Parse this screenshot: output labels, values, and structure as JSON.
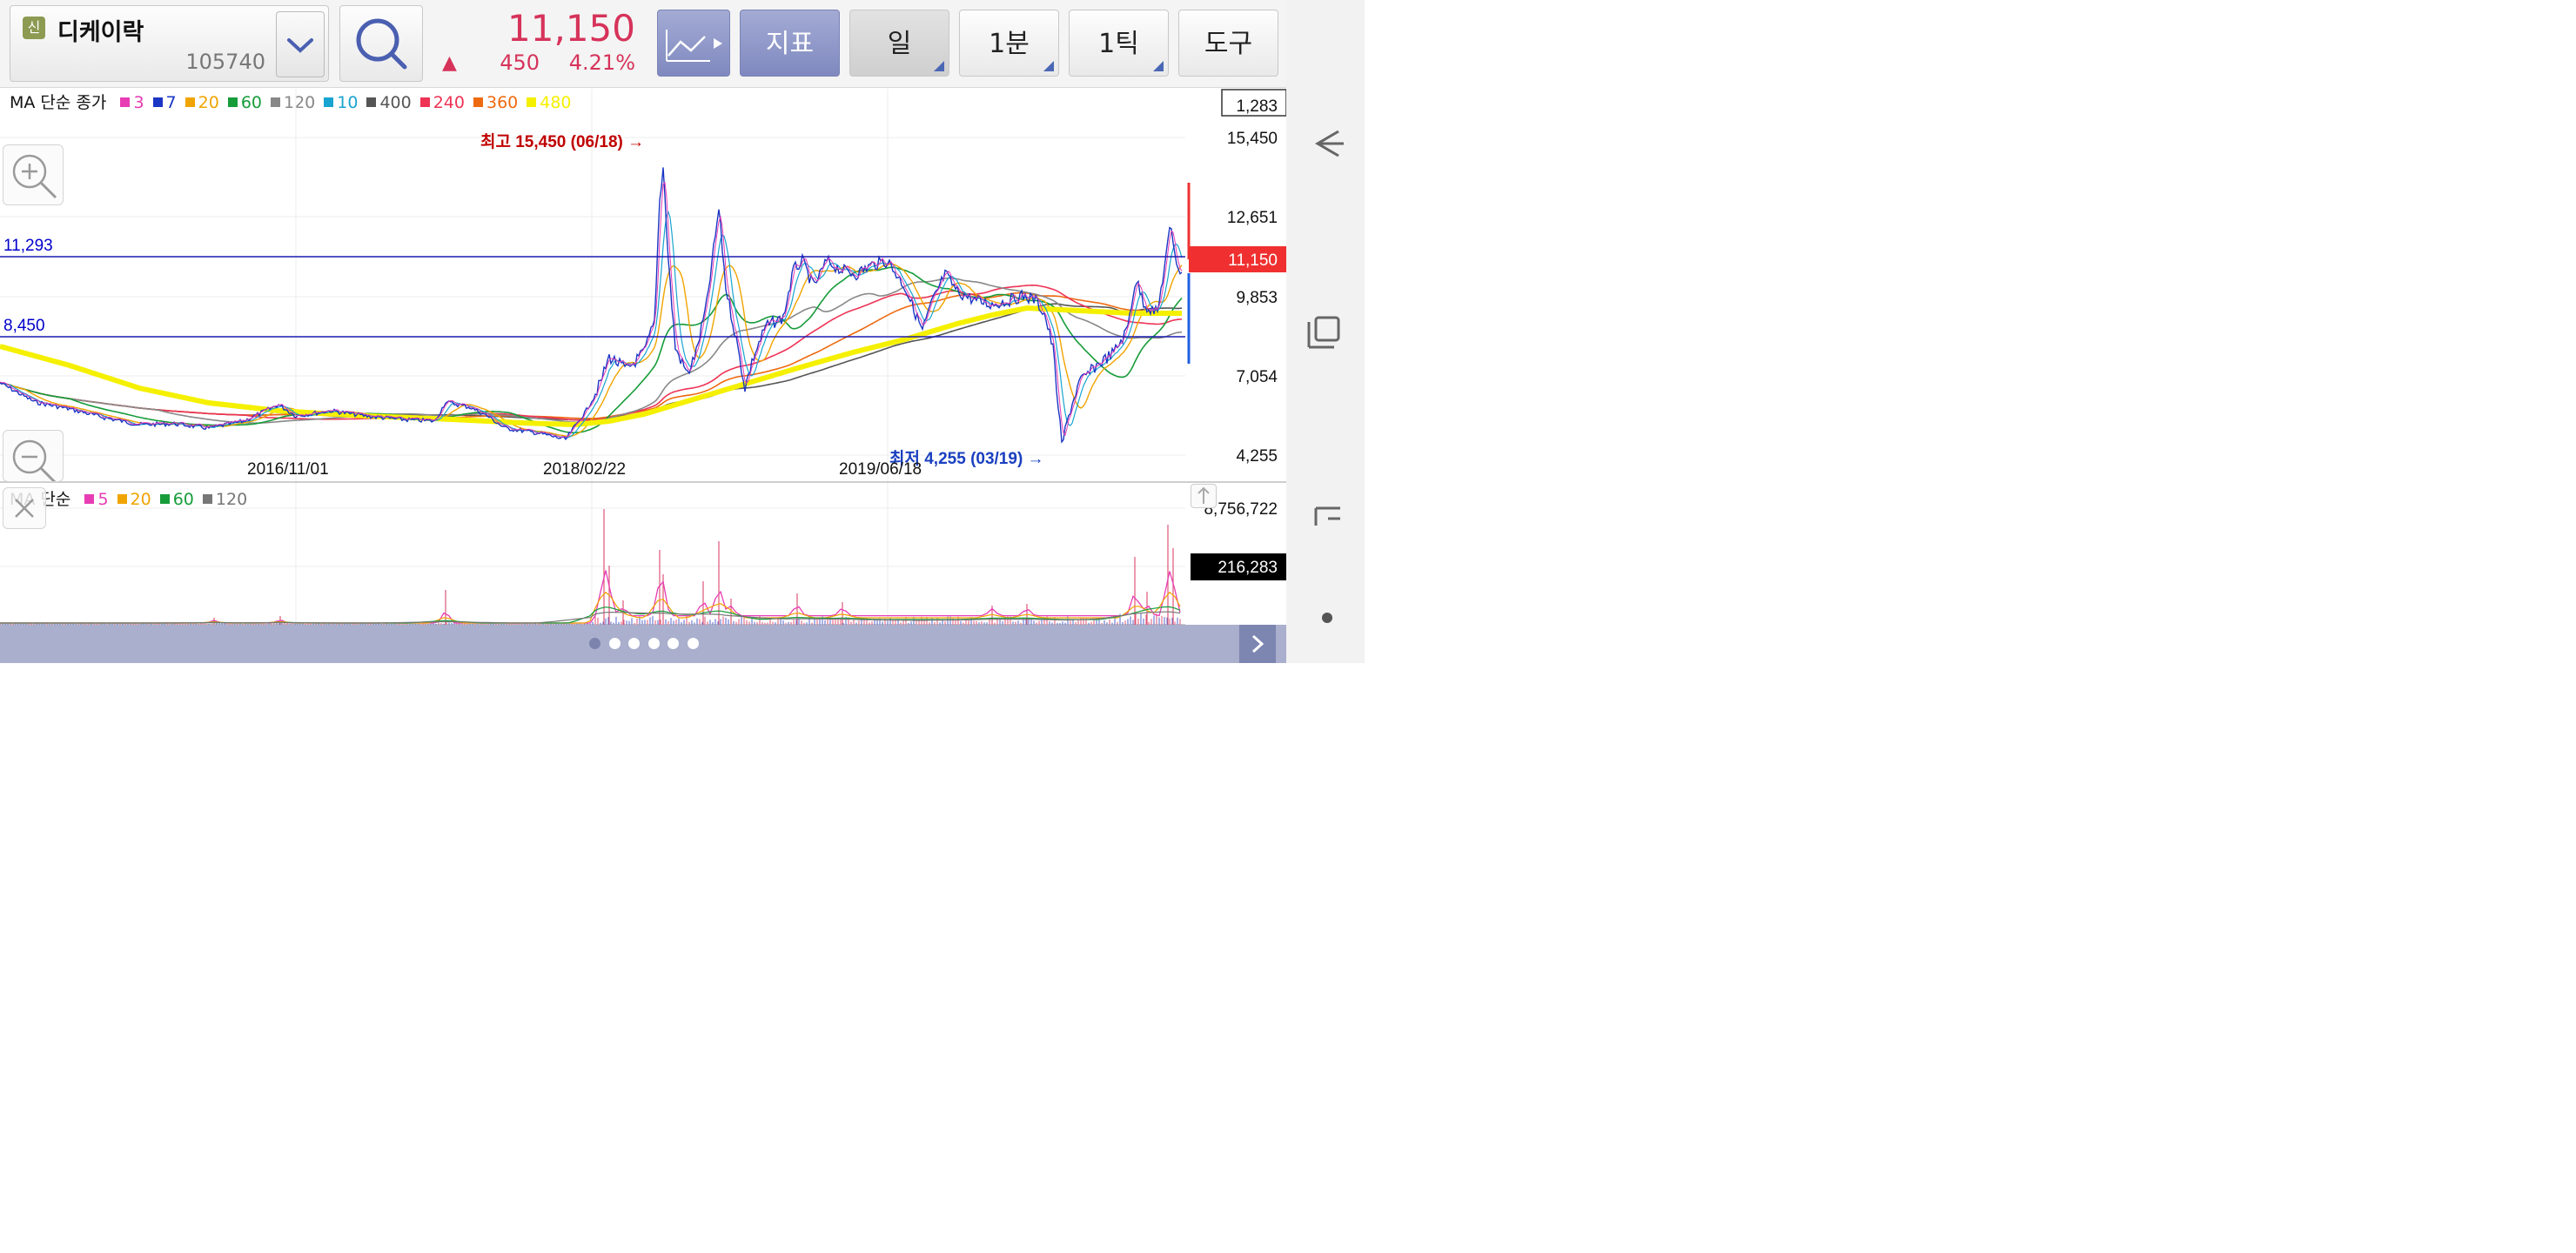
{
  "toolbar": {
    "new_badge": "신",
    "stock_name": "디케이락",
    "stock_code": "105740",
    "price": "11,150",
    "change_arrow": "▲",
    "change": "450",
    "change_pct": "4.21%",
    "indicator_label": "지표",
    "period_day": "일",
    "period_minute": "1분",
    "period_tick": "1틱",
    "tools_label": "도구"
  },
  "price_legend": {
    "prefix": "MA 단순 종가",
    "items": [
      {
        "label": "3",
        "color": "#e83cb4"
      },
      {
        "label": "7",
        "color": "#1a36c4"
      },
      {
        "label": "20",
        "color": "#f0a400"
      },
      {
        "label": "60",
        "color": "#179c3a"
      },
      {
        "label": "120",
        "color": "#888888"
      },
      {
        "label": "10",
        "color": "#18a4d0"
      },
      {
        "label": "400",
        "color": "#555555"
      },
      {
        "label": "240",
        "color": "#ee3355"
      },
      {
        "label": "360",
        "color": "#ee6a10"
      },
      {
        "label": "480",
        "color": "#f5f000"
      }
    ]
  },
  "volume_legend": {
    "prefix": "MA 단순",
    "items": [
      {
        "label": "5",
        "color": "#e83cb4"
      },
      {
        "label": "20",
        "color": "#f0a400"
      },
      {
        "label": "60",
        "color": "#179c3a"
      },
      {
        "label": "120",
        "color": "#777777"
      }
    ]
  },
  "price_axis": {
    "ticks": [
      "15,450",
      "12,651",
      "9,853",
      "7,054",
      "4,255"
    ],
    "top_box": "1,283",
    "current_tag": "11,150"
  },
  "horizontal_lines": [
    "11,293",
    "8,450"
  ],
  "annotations": {
    "high": "최고 15,450 (06/18) →",
    "low": "최저 4,255 (03/19) →"
  },
  "date_labels": [
    "2016/11/01",
    "2018/02/22",
    "2019/06/18"
  ],
  "volume_axis": {
    "max": "8,756,722",
    "current_tag": "216,283"
  },
  "colors": {
    "up": "#d6335a",
    "accent_blue": "#0000cc",
    "current_price_tag": "#f03030"
  },
  "pagination": {
    "count": 6,
    "active": 0
  }
}
